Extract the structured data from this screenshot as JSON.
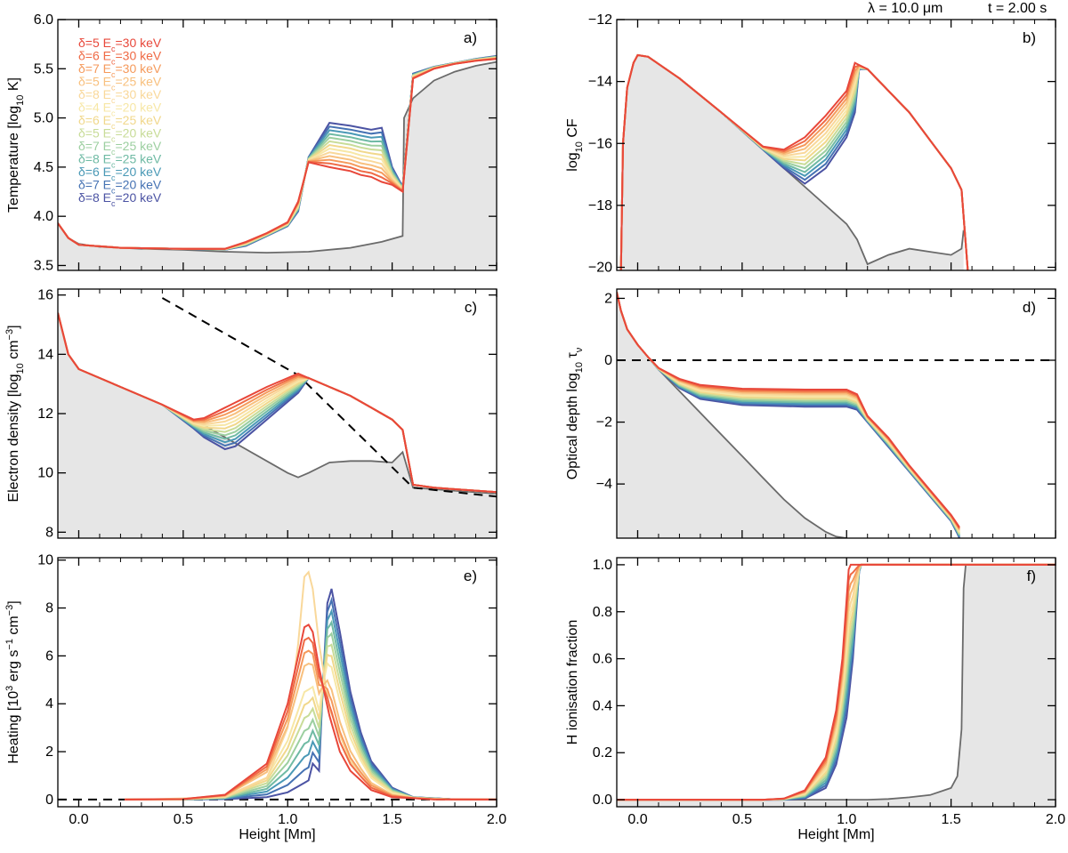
{
  "header": {
    "wavelength_label": "λ = 10.0 μm",
    "time_label": "t = 2.00 s"
  },
  "xlabel": "Height [Mm]",
  "legend": [
    {
      "label": "δ=5 E c =30 keV",
      "color": "#e8473a"
    },
    {
      "label": "δ=6 E c =30 keV",
      "color": "#ef6a45"
    },
    {
      "label": "δ=7 E c =30 keV",
      "color": "#f59a5c"
    },
    {
      "label": "δ=5 E c =25 keV",
      "color": "#f8c07e"
    },
    {
      "label": "δ=8 E c =30 keV",
      "color": "#f9d89a"
    },
    {
      "label": "δ=4 E c =20 keV",
      "color": "#f7e7a6"
    },
    {
      "label": "δ=6 E c =25 keV",
      "color": "#f1d88c"
    },
    {
      "label": "δ=5 E c =20 keV",
      "color": "#c8dc98"
    },
    {
      "label": "δ=7 E c =25 keV",
      "color": "#9ccfa0"
    },
    {
      "label": "δ=8 E c =25 keV",
      "color": "#6fbaa4"
    },
    {
      "label": "δ=6 E c =20 keV",
      "color": "#4a99b6"
    },
    {
      "label": "δ=7 E c =20 keV",
      "color": "#4572b3"
    },
    {
      "label": "δ=8 E c =20 keV",
      "color": "#4b53a3"
    }
  ],
  "chart_data": [
    {
      "type": "line",
      "panel_label": "a)",
      "ylabel": "Temperature [log 10 K]",
      "xlim": [
        -0.1,
        2.0
      ],
      "ylim": [
        3.45,
        6.0
      ],
      "yticks": [
        "3.5",
        "4.0",
        "4.5",
        "5.0",
        "5.5",
        "6.0"
      ],
      "yticks_values": [
        3.5,
        4.0,
        4.5,
        5.0,
        5.5,
        6.0
      ],
      "xticks": [
        "0.0",
        "0.5",
        "1.0",
        "1.5",
        "2.0"
      ],
      "preflare": {
        "x": [
          -0.1,
          -0.05,
          0.0,
          0.1,
          0.3,
          0.5,
          0.7,
          0.9,
          1.1,
          1.3,
          1.45,
          1.55,
          1.557,
          1.6,
          1.7,
          1.8,
          1.9,
          2.0
        ],
        "y": [
          3.93,
          3.78,
          3.72,
          3.69,
          3.67,
          3.66,
          3.64,
          3.63,
          3.64,
          3.68,
          3.74,
          3.8,
          5.0,
          5.2,
          5.38,
          5.47,
          5.53,
          5.57
        ]
      },
      "series_hot": {
        "x": [
          -0.1,
          -0.05,
          0.0,
          0.2,
          0.5,
          0.7,
          0.8,
          0.9,
          1.0,
          1.05,
          1.1,
          1.2,
          1.3,
          1.35,
          1.4,
          1.45,
          1.5,
          1.55,
          1.6,
          1.7,
          1.8,
          1.9,
          2.0
        ],
        "y": [
          3.93,
          3.78,
          3.71,
          3.68,
          3.67,
          3.67,
          3.74,
          3.83,
          3.94,
          4.15,
          4.55,
          4.5,
          4.46,
          4.42,
          4.4,
          4.35,
          4.32,
          4.25,
          5.4,
          5.5,
          5.55,
          5.58,
          5.6
        ]
      },
      "series_cool": {
        "x": [
          -0.1,
          -0.05,
          0.0,
          0.2,
          0.5,
          0.7,
          0.8,
          0.9,
          1.0,
          1.05,
          1.1,
          1.2,
          1.3,
          1.35,
          1.4,
          1.45,
          1.5,
          1.55,
          1.6,
          1.7,
          1.8,
          1.9,
          2.0
        ],
        "y": [
          3.93,
          3.78,
          3.71,
          3.68,
          3.67,
          3.66,
          3.7,
          3.8,
          3.9,
          4.05,
          4.6,
          4.95,
          4.92,
          4.9,
          4.88,
          4.9,
          4.5,
          4.3,
          5.45,
          5.52,
          5.56,
          5.6,
          5.63
        ]
      }
    },
    {
      "type": "line",
      "panel_label": "b)",
      "ylabel": "log 10 CF",
      "xlim": [
        -0.1,
        2.0
      ],
      "ylim": [
        -20.1,
        -12.0
      ],
      "yticks": [
        "−20",
        "−18",
        "−16",
        "−14",
        "−12"
      ],
      "yticks_values": [
        -20,
        -18,
        -16,
        -14,
        -12
      ],
      "xticks": [
        "0.0",
        "0.5",
        "1.0",
        "1.5",
        "2.0"
      ],
      "preflare": {
        "x": [
          -0.08,
          -0.07,
          -0.05,
          -0.02,
          0.0,
          0.05,
          0.2,
          0.4,
          0.6,
          0.8,
          1.0,
          1.05,
          1.1,
          1.2,
          1.3,
          1.4,
          1.5,
          1.55,
          1.56
        ],
        "y": [
          -20.1,
          -16.0,
          -14.2,
          -13.4,
          -13.15,
          -13.2,
          -13.9,
          -15.0,
          -16.2,
          -17.4,
          -18.6,
          -19.1,
          -19.9,
          -19.6,
          -19.4,
          -19.5,
          -19.6,
          -19.4,
          -18.8
        ]
      },
      "series_hot": {
        "x": [
          -0.08,
          -0.07,
          -0.05,
          -0.02,
          0.0,
          0.05,
          0.2,
          0.4,
          0.6,
          0.7,
          0.8,
          0.9,
          1.0,
          1.04,
          1.1,
          1.2,
          1.3,
          1.4,
          1.5,
          1.55,
          1.58
        ],
        "y": [
          -20.1,
          -16.0,
          -14.2,
          -13.4,
          -13.15,
          -13.2,
          -13.9,
          -15.0,
          -16.1,
          -16.2,
          -15.8,
          -15.1,
          -14.3,
          -13.4,
          -13.6,
          -14.3,
          -15.0,
          -15.9,
          -16.8,
          -17.5,
          -20.1
        ]
      },
      "series_cool": {
        "x": [
          -0.08,
          -0.07,
          -0.05,
          -0.02,
          0.0,
          0.05,
          0.2,
          0.4,
          0.6,
          0.7,
          0.8,
          0.9,
          1.0,
          1.04,
          1.06,
          1.1,
          1.2,
          1.3,
          1.4,
          1.5,
          1.55,
          1.58
        ],
        "y": [
          -20.1,
          -16.0,
          -14.2,
          -13.4,
          -13.15,
          -13.2,
          -13.9,
          -15.0,
          -16.2,
          -16.8,
          -17.3,
          -16.8,
          -15.8,
          -15.0,
          -13.6,
          -13.6,
          -14.3,
          -15.0,
          -15.9,
          -16.8,
          -17.5,
          -20.1
        ]
      }
    },
    {
      "type": "line",
      "panel_label": "c)",
      "ylabel": "Electron density [log 10 cm −3 ]",
      "xlim": [
        -0.1,
        2.0
      ],
      "ylim": [
        7.8,
        16.2
      ],
      "yticks": [
        "8",
        "10",
        "12",
        "14",
        "16"
      ],
      "yticks_values": [
        8,
        10,
        12,
        14,
        16
      ],
      "xticks": [
        "0.0",
        "0.5",
        "1.0",
        "1.5",
        "2.0"
      ],
      "preflare": {
        "x": [
          -0.1,
          -0.05,
          0.0,
          0.2,
          0.4,
          0.6,
          0.8,
          1.0,
          1.05,
          1.1,
          1.2,
          1.3,
          1.4,
          1.5,
          1.55,
          1.6,
          1.7,
          1.8,
          2.0
        ],
        "y": [
          15.4,
          14.0,
          13.5,
          12.9,
          12.3,
          11.6,
          10.8,
          10.0,
          9.85,
          10.0,
          10.35,
          10.4,
          10.4,
          10.35,
          10.7,
          9.5,
          9.45,
          9.4,
          9.3
        ]
      },
      "series_hot": {
        "x": [
          -0.1,
          -0.05,
          0.0,
          0.2,
          0.4,
          0.55,
          0.6,
          0.7,
          0.8,
          0.9,
          1.0,
          1.05,
          1.1,
          1.2,
          1.3,
          1.4,
          1.5,
          1.55,
          1.6,
          1.7,
          1.8,
          2.0
        ],
        "y": [
          15.4,
          14.0,
          13.5,
          12.9,
          12.3,
          11.8,
          11.85,
          12.2,
          12.55,
          12.9,
          13.2,
          13.35,
          13.2,
          12.9,
          12.6,
          12.2,
          11.8,
          11.45,
          9.6,
          9.5,
          9.45,
          9.35
        ]
      },
      "series_cool": {
        "x": [
          -0.1,
          -0.05,
          0.0,
          0.2,
          0.4,
          0.55,
          0.6,
          0.7,
          0.75,
          0.8,
          0.9,
          1.0,
          1.05,
          1.1,
          1.2,
          1.3,
          1.4,
          1.5,
          1.55,
          1.6,
          1.7,
          1.8,
          2.0
        ],
        "y": [
          15.4,
          14.0,
          13.5,
          12.9,
          12.3,
          11.5,
          11.2,
          10.8,
          10.9,
          11.2,
          11.8,
          12.4,
          12.7,
          13.2,
          12.9,
          12.6,
          12.2,
          11.8,
          11.45,
          9.6,
          9.5,
          9.45,
          9.35
        ]
      },
      "reference": {
        "x": [
          0.4,
          1.05,
          1.6,
          2.0
        ],
        "y": [
          15.9,
          13.3,
          9.5,
          9.2
        ]
      }
    },
    {
      "type": "line",
      "panel_label": "d)",
      "ylabel": "Optical depth log 10 τ ν",
      "xlim": [
        -0.1,
        2.0
      ],
      "ylim": [
        -5.75,
        2.3
      ],
      "yticks": [
        "−4",
        "−2",
        "0",
        "2"
      ],
      "yticks_values": [
        -4,
        -2,
        0,
        2
      ],
      "xticks": [
        "0.0",
        "0.5",
        "1.0",
        "1.5",
        "2.0"
      ],
      "preflare": {
        "x": [
          -0.1,
          -0.08,
          -0.05,
          0.0,
          0.05,
          0.1,
          0.2,
          0.3,
          0.4,
          0.5,
          0.6,
          0.7,
          0.8,
          0.9,
          0.95,
          1.0
        ],
        "y": [
          2.2,
          1.6,
          1.0,
          0.5,
          0.1,
          -0.3,
          -1.0,
          -1.7,
          -2.4,
          -3.1,
          -3.8,
          -4.5,
          -5.1,
          -5.55,
          -5.7,
          -5.75
        ]
      },
      "series_hot": {
        "x": [
          -0.1,
          -0.08,
          -0.05,
          0.0,
          0.05,
          0.1,
          0.2,
          0.3,
          0.5,
          0.8,
          1.0,
          1.05,
          1.1,
          1.2,
          1.3,
          1.4,
          1.5,
          1.55,
          1.56
        ],
        "y": [
          2.2,
          1.6,
          1.0,
          0.5,
          0.1,
          -0.25,
          -0.6,
          -0.8,
          -0.92,
          -0.95,
          -0.95,
          -1.1,
          -1.8,
          -2.5,
          -3.4,
          -4.2,
          -5.0,
          -5.5,
          -5.75
        ]
      },
      "series_cool": {
        "x": [
          -0.1,
          -0.08,
          -0.05,
          0.0,
          0.05,
          0.1,
          0.2,
          0.3,
          0.5,
          0.8,
          1.0,
          1.05,
          1.1,
          1.2,
          1.3,
          1.4,
          1.5,
          1.53,
          1.54
        ],
        "y": [
          2.2,
          1.6,
          1.0,
          0.5,
          0.1,
          -0.3,
          -0.9,
          -1.25,
          -1.45,
          -1.5,
          -1.5,
          -1.6,
          -2.0,
          -2.8,
          -3.6,
          -4.4,
          -5.2,
          -5.6,
          -5.75
        ]
      },
      "reference": {
        "x": [
          -0.1,
          2.0
        ],
        "y": [
          0,
          0
        ]
      }
    },
    {
      "type": "line",
      "panel_label": "e)",
      "ylabel": "Heating [10 3 erg s −1 cm −3 ]",
      "xlim": [
        -0.1,
        2.0
      ],
      "ylim": [
        -0.3,
        10.1
      ],
      "yticks": [
        "0",
        "2",
        "4",
        "6",
        "8",
        "10"
      ],
      "yticks_values": [
        0,
        2,
        4,
        6,
        8,
        10
      ],
      "xticks": [
        "0.0",
        "0.5",
        "1.0",
        "1.5",
        "2.0"
      ],
      "series_hot": {
        "x": [
          0.22,
          0.5,
          0.7,
          0.9,
          1.0,
          1.05,
          1.08,
          1.1,
          1.12,
          1.15,
          1.2,
          1.25,
          1.3,
          1.4,
          1.5,
          1.7,
          2.0
        ],
        "y": [
          0,
          0.02,
          0.2,
          1.5,
          4.0,
          6.0,
          7.2,
          7.3,
          7.0,
          5.5,
          3.5,
          2.0,
          1.2,
          0.4,
          0.1,
          0.01,
          0
        ]
      },
      "series_cool": {
        "x": [
          0.22,
          0.5,
          0.7,
          0.9,
          1.0,
          1.1,
          1.12,
          1.15,
          1.17,
          1.19,
          1.21,
          1.25,
          1.3,
          1.35,
          1.4,
          1.5,
          1.6,
          1.8,
          2.0
        ],
        "y": [
          0,
          0.0,
          0.02,
          0.1,
          0.3,
          0.8,
          1.5,
          1.2,
          5.0,
          8.2,
          8.8,
          7.0,
          4.5,
          2.8,
          1.6,
          0.5,
          0.1,
          0.01,
          0
        ]
      },
      "series_peak": {
        "x": [
          0.3,
          0.7,
          0.9,
          1.0,
          1.05,
          1.08,
          1.1,
          1.12,
          1.15,
          1.2,
          1.3,
          1.4,
          1.5,
          1.7,
          2.0
        ],
        "y": [
          0,
          0.1,
          0.9,
          3.0,
          6.5,
          9.3,
          9.5,
          8.8,
          6.5,
          3.8,
          1.6,
          0.6,
          0.15,
          0.01,
          0
        ]
      },
      "reference": {
        "x": [
          -0.1,
          2.0
        ],
        "y": [
          0,
          0
        ]
      }
    },
    {
      "type": "line",
      "panel_label": "f)",
      "ylabel": "H ionisation fraction",
      "xlim": [
        -0.1,
        2.0
      ],
      "ylim": [
        -0.03,
        1.03
      ],
      "yticks": [
        "0.0",
        "0.2",
        "0.4",
        "0.6",
        "0.8",
        "1.0"
      ],
      "yticks_values": [
        0,
        0.2,
        0.4,
        0.6,
        0.8,
        1.0
      ],
      "xticks": [
        "0.0",
        "0.5",
        "1.0",
        "1.5",
        "2.0"
      ],
      "preflare": {
        "x": [
          -0.1,
          1.1,
          1.2,
          1.3,
          1.4,
          1.5,
          1.53,
          1.55,
          1.56,
          1.57
        ],
        "y": [
          0,
          0,
          0.003,
          0.01,
          0.02,
          0.05,
          0.1,
          0.3,
          0.9,
          1.0
        ]
      },
      "series_hot": {
        "x": [
          -0.1,
          0.6,
          0.7,
          0.8,
          0.9,
          0.95,
          0.98,
          1.0,
          1.01,
          1.02,
          1.05,
          1.2,
          1.5,
          2.0
        ],
        "y": [
          0,
          0,
          0.005,
          0.04,
          0.18,
          0.38,
          0.6,
          0.85,
          0.98,
          1.0,
          1.0,
          1.0,
          1.0,
          1.0
        ]
      },
      "series_cool": {
        "x": [
          -0.1,
          0.7,
          0.8,
          0.9,
          0.95,
          1.0,
          1.03,
          1.05,
          1.06,
          1.07,
          1.1,
          1.5,
          2.0
        ],
        "y": [
          0,
          0,
          0.005,
          0.05,
          0.15,
          0.35,
          0.6,
          0.85,
          0.97,
          1.0,
          1.0,
          1.0,
          1.0
        ]
      }
    }
  ]
}
